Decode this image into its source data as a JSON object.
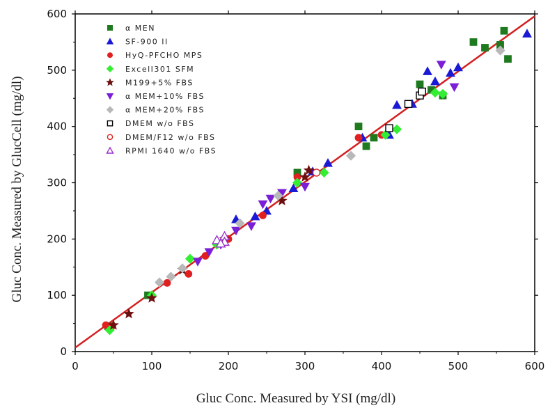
{
  "chart_data": {
    "type": "scatter",
    "title": "",
    "xlabel": "Gluc Conc. Measured by YSI (mg/dl)",
    "ylabel": "Gluc Conc. Measured by GlucCell (mg/dl)",
    "xlim": [
      0,
      600
    ],
    "ylim": [
      0,
      600
    ],
    "xticks": [
      0,
      100,
      200,
      300,
      400,
      500,
      600
    ],
    "yticks": [
      0,
      100,
      200,
      300,
      400,
      500,
      600
    ],
    "grid": false,
    "legend_position": "top-left",
    "fit_line": {
      "x": [
        0,
        600
      ],
      "y": [
        7,
        596
      ],
      "color": "#d42020"
    },
    "series": [
      {
        "name": "α MEN",
        "marker": "square",
        "color": "#1f7a1f",
        "filled": true,
        "points": [
          [
            43,
            45
          ],
          [
            95,
            100
          ],
          [
            290,
            318
          ],
          [
            370,
            400
          ],
          [
            380,
            365
          ],
          [
            390,
            380
          ],
          [
            450,
            475
          ],
          [
            465,
            465
          ],
          [
            480,
            455
          ],
          [
            520,
            550
          ],
          [
            535,
            540
          ],
          [
            555,
            545
          ],
          [
            560,
            570
          ],
          [
            565,
            520
          ]
        ]
      },
      {
        "name": "SF-900 II",
        "marker": "triangle-up",
        "color": "#1a1ad6",
        "filled": true,
        "points": [
          [
            210,
            235
          ],
          [
            235,
            240
          ],
          [
            250,
            250
          ],
          [
            285,
            290
          ],
          [
            310,
            320
          ],
          [
            330,
            335
          ],
          [
            375,
            380
          ],
          [
            410,
            385
          ],
          [
            420,
            438
          ],
          [
            440,
            440
          ],
          [
            460,
            498
          ],
          [
            470,
            480
          ],
          [
            490,
            495
          ],
          [
            500,
            505
          ],
          [
            590,
            565
          ]
        ]
      },
      {
        "name": "HyQ-PFCHO MPS",
        "marker": "circle",
        "color": "#e02020",
        "filled": true,
        "points": [
          [
            40,
            47
          ],
          [
            48,
            45
          ],
          [
            120,
            122
          ],
          [
            148,
            138
          ],
          [
            170,
            170
          ],
          [
            200,
            200
          ],
          [
            245,
            242
          ],
          [
            290,
            310
          ],
          [
            370,
            380
          ],
          [
            400,
            385
          ]
        ]
      },
      {
        "name": "ExcelI301 SFM",
        "marker": "diamond",
        "color": "#33ee33",
        "filled": true,
        "points": [
          [
            45,
            38
          ],
          [
            100,
            100
          ],
          [
            150,
            165
          ],
          [
            185,
            190
          ],
          [
            290,
            300
          ],
          [
            325,
            318
          ],
          [
            405,
            385
          ],
          [
            420,
            395
          ],
          [
            470,
            460
          ],
          [
            480,
            458
          ]
        ]
      },
      {
        "name": "M199+5% FBS",
        "marker": "star",
        "color": "#6b0f0f",
        "filled": true,
        "points": [
          [
            50,
            47
          ],
          [
            70,
            67
          ],
          [
            100,
            95
          ],
          [
            140,
            145
          ],
          [
            195,
            200
          ],
          [
            270,
            268
          ],
          [
            300,
            310
          ],
          [
            305,
            322
          ]
        ]
      },
      {
        "name": "α MEM+10% FBS",
        "marker": "triangle-down",
        "color": "#7a1fd6",
        "filled": true,
        "points": [
          [
            160,
            160
          ],
          [
            175,
            177
          ],
          [
            190,
            190
          ],
          [
            210,
            215
          ],
          [
            230,
            223
          ],
          [
            245,
            262
          ],
          [
            255,
            272
          ],
          [
            270,
            282
          ],
          [
            300,
            293
          ],
          [
            478,
            510
          ],
          [
            495,
            470
          ]
        ]
      },
      {
        "name": "α MEM+20% FBS",
        "marker": "diamond",
        "color": "#b8b8b8",
        "filled": true,
        "points": [
          [
            110,
            123
          ],
          [
            125,
            133
          ],
          [
            140,
            148
          ],
          [
            215,
            228
          ],
          [
            265,
            277
          ],
          [
            360,
            348
          ],
          [
            555,
            535
          ]
        ]
      },
      {
        "name": "DMEM w/o FBS",
        "marker": "square",
        "color": "#000000",
        "filled": false,
        "points": [
          [
            435,
            440
          ],
          [
            410,
            397
          ],
          [
            450,
            455
          ],
          [
            453,
            462
          ]
        ]
      },
      {
        "name": "DMEM/F12 w/o FBS",
        "marker": "circle",
        "color": "#e02020",
        "filled": false,
        "points": [
          [
            315,
            318
          ]
        ]
      },
      {
        "name": "RPMI 1640 w/o FBS",
        "marker": "triangle-up",
        "color": "#9933cc",
        "filled": false,
        "points": [
          [
            195,
            205
          ],
          [
            195,
            195
          ],
          [
            185,
            198
          ],
          [
            190,
            192
          ]
        ]
      }
    ]
  }
}
